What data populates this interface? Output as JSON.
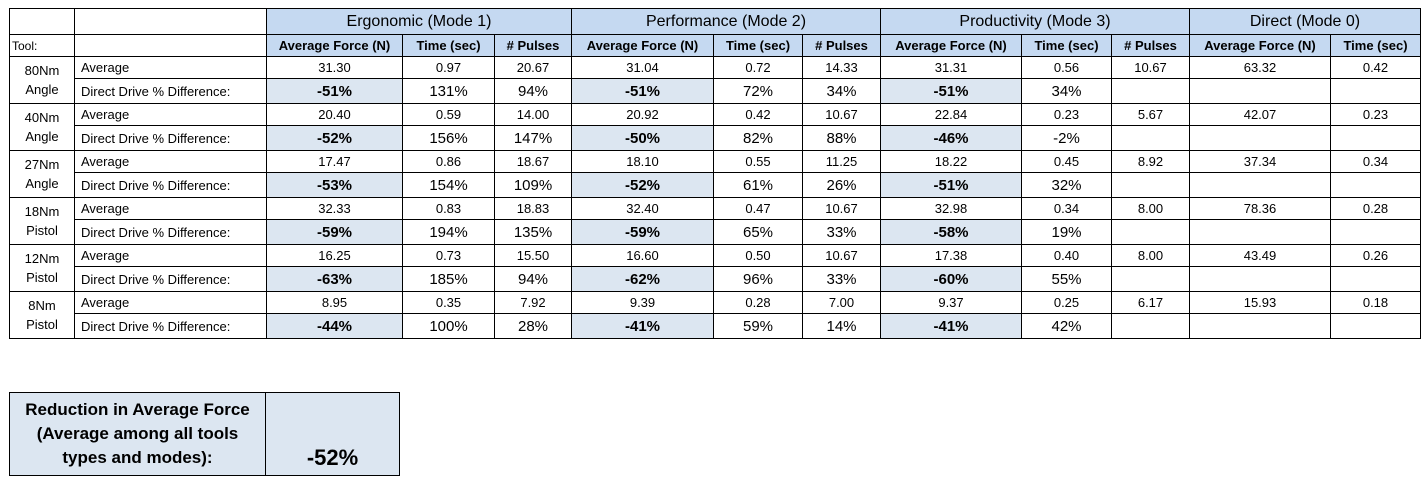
{
  "header": {
    "tool_label": "Tool:",
    "groups": [
      {
        "name": "Ergonomic (Mode 1)",
        "cols": [
          "Average Force (N)",
          "Time (sec)",
          "# Pulses"
        ]
      },
      {
        "name": "Performance (Mode 2)",
        "cols": [
          "Average Force (N)",
          "Time (sec)",
          "# Pulses"
        ]
      },
      {
        "name": "Productivity (Mode 3)",
        "cols": [
          "Average Force (N)",
          "Time (sec)",
          "# Pulses"
        ]
      },
      {
        "name": "Direct (Mode 0)",
        "cols": [
          "Average Force (N)",
          "Time (sec)"
        ]
      }
    ]
  },
  "rows": [
    {
      "tool_line1": "80Nm",
      "tool_line2": "Angle",
      "avg_label": "Average",
      "dd_label": "Direct Drive % Difference:",
      "avg": [
        "31.30",
        "0.97",
        "20.67",
        "31.04",
        "0.72",
        "14.33",
        "31.31",
        "0.56",
        "10.67",
        "63.32",
        "0.42"
      ],
      "dd": [
        "-51%",
        "131%",
        "94%",
        "-51%",
        "72%",
        "34%",
        "-51%",
        "34%",
        "",
        "",
        ""
      ]
    },
    {
      "tool_line1": "40Nm",
      "tool_line2": "Angle",
      "avg_label": "Average",
      "dd_label": "Direct Drive % Difference:",
      "avg": [
        "20.40",
        "0.59",
        "14.00",
        "20.92",
        "0.42",
        "10.67",
        "22.84",
        "0.23",
        "5.67",
        "42.07",
        "0.23"
      ],
      "dd": [
        "-52%",
        "156%",
        "147%",
        "-50%",
        "82%",
        "88%",
        "-46%",
        "-2%",
        "",
        "",
        ""
      ]
    },
    {
      "tool_line1": "27Nm",
      "tool_line2": "Angle",
      "avg_label": "Average",
      "dd_label": "Direct Drive % Difference:",
      "avg": [
        "17.47",
        "0.86",
        "18.67",
        "18.10",
        "0.55",
        "11.25",
        "18.22",
        "0.45",
        "8.92",
        "37.34",
        "0.34"
      ],
      "dd": [
        "-53%",
        "154%",
        "109%",
        "-52%",
        "61%",
        "26%",
        "-51%",
        "32%",
        "",
        "",
        ""
      ]
    },
    {
      "tool_line1": "18Nm",
      "tool_line2": "Pistol",
      "avg_label": "Average",
      "dd_label": "Direct Drive % Difference:",
      "avg": [
        "32.33",
        "0.83",
        "18.83",
        "32.40",
        "0.47",
        "10.67",
        "32.98",
        "0.34",
        "8.00",
        "78.36",
        "0.28"
      ],
      "dd": [
        "-59%",
        "194%",
        "135%",
        "-59%",
        "65%",
        "33%",
        "-58%",
        "19%",
        "",
        "",
        ""
      ]
    },
    {
      "tool_line1": "12Nm",
      "tool_line2": "Pistol",
      "avg_label": "Average",
      "dd_label": "Direct Drive % Difference:",
      "avg": [
        "16.25",
        "0.73",
        "15.50",
        "16.60",
        "0.50",
        "10.67",
        "17.38",
        "0.40",
        "8.00",
        "43.49",
        "0.26"
      ],
      "dd": [
        "-63%",
        "185%",
        "94%",
        "-62%",
        "96%",
        "33%",
        "-60%",
        "55%",
        "",
        "",
        ""
      ]
    },
    {
      "tool_line1": "8Nm",
      "tool_line2": "Pistol",
      "avg_label": "Average",
      "dd_label": "Direct Drive % Difference:",
      "avg": [
        "8.95",
        "0.35",
        "7.92",
        "9.39",
        "0.28",
        "7.00",
        "9.37",
        "0.25",
        "6.17",
        "15.93",
        "0.18"
      ],
      "dd": [
        "-44%",
        "100%",
        "28%",
        "-41%",
        "59%",
        "14%",
        "-41%",
        "42%",
        "",
        "",
        ""
      ]
    }
  ],
  "summary": {
    "label_line1": "Reduction in Average Force",
    "label_line2": "(Average among all tools",
    "label_line3": "types and modes):",
    "value": "-52%"
  }
}
